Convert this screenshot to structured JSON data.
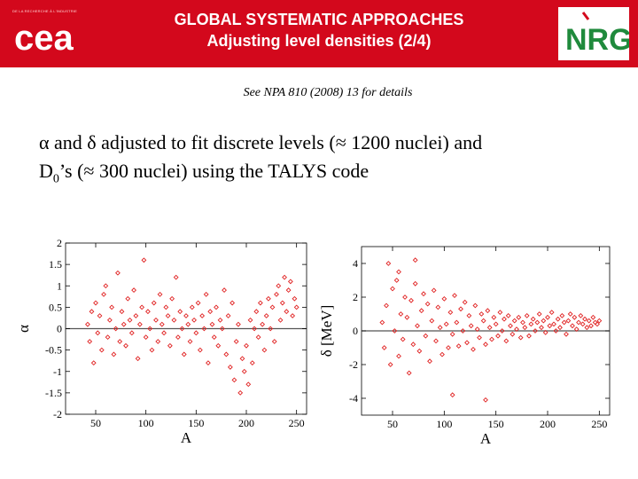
{
  "header": {
    "title_line1": "GLOBAL SYSTEMATIC APPROACHES",
    "title_line2": "Adjusting level densities (2/4)",
    "left_logo_tag": "DE LA RECHERCHE À L'INDUSTRIE",
    "left_logo_text": "cea",
    "right_logo_text": "NRG",
    "brand_color": "#d3081c",
    "nrg_color": "#1f8a3c"
  },
  "note": "See NPA 810 (2008) 13 for details",
  "body": {
    "line1_symbol_a": "α",
    "line1_and": " and ",
    "line1_symbol_b": "δ",
    "line1_rest": " adjusted to fit discrete levels (≈ 1200 nuclei) and",
    "line2_start": "D",
    "line2_sub": "0",
    "line2_rest": "’s (≈ 300 nuclei) using the TALYS code"
  },
  "chart_data": [
    {
      "type": "scatter",
      "xlabel": "A",
      "ylabel": "α",
      "xlim": [
        20,
        260
      ],
      "ylim": [
        -2,
        2
      ],
      "xticks": [
        50,
        100,
        150,
        200,
        250
      ],
      "yticks": [
        2,
        1.5,
        1,
        0.5,
        0,
        -0.5,
        -1,
        -1.5,
        -2
      ],
      "reference_line": 0,
      "marker_color": "#e02020",
      "points": [
        [
          42,
          0.1
        ],
        [
          44,
          -0.3
        ],
        [
          46,
          0.4
        ],
        [
          48,
          -0.8
        ],
        [
          50,
          0.6
        ],
        [
          52,
          -0.1
        ],
        [
          54,
          0.3
        ],
        [
          56,
          -0.5
        ],
        [
          58,
          0.8
        ],
        [
          60,
          1.0
        ],
        [
          62,
          -0.2
        ],
        [
          64,
          0.2
        ],
        [
          66,
          0.5
        ],
        [
          68,
          -0.6
        ],
        [
          70,
          0.0
        ],
        [
          72,
          1.3
        ],
        [
          74,
          -0.3
        ],
        [
          76,
          0.4
        ],
        [
          78,
          0.1
        ],
        [
          80,
          -0.4
        ],
        [
          82,
          0.7
        ],
        [
          84,
          0.2
        ],
        [
          86,
          -0.1
        ],
        [
          88,
          0.9
        ],
        [
          90,
          0.3
        ],
        [
          92,
          -0.7
        ],
        [
          94,
          0.1
        ],
        [
          96,
          0.5
        ],
        [
          98,
          1.6
        ],
        [
          100,
          -0.2
        ],
        [
          102,
          0.4
        ],
        [
          104,
          0.0
        ],
        [
          106,
          -0.5
        ],
        [
          108,
          0.6
        ],
        [
          110,
          0.2
        ],
        [
          112,
          -0.3
        ],
        [
          114,
          0.8
        ],
        [
          116,
          0.1
        ],
        [
          118,
          -0.1
        ],
        [
          120,
          0.5
        ],
        [
          122,
          0.3
        ],
        [
          124,
          -0.4
        ],
        [
          126,
          0.7
        ],
        [
          128,
          0.2
        ],
        [
          130,
          1.2
        ],
        [
          132,
          -0.2
        ],
        [
          134,
          0.4
        ],
        [
          136,
          0.0
        ],
        [
          138,
          -0.6
        ],
        [
          140,
          0.3
        ],
        [
          142,
          0.1
        ],
        [
          144,
          -0.3
        ],
        [
          146,
          0.5
        ],
        [
          148,
          0.2
        ],
        [
          150,
          -0.1
        ],
        [
          152,
          0.6
        ],
        [
          154,
          -0.5
        ],
        [
          156,
          0.3
        ],
        [
          158,
          0.0
        ],
        [
          160,
          0.8
        ],
        [
          162,
          -0.8
        ],
        [
          164,
          0.4
        ],
        [
          166,
          0.1
        ],
        [
          168,
          -0.2
        ],
        [
          170,
          0.5
        ],
        [
          172,
          -0.4
        ],
        [
          174,
          0.2
        ],
        [
          176,
          0.0
        ],
        [
          178,
          0.9
        ],
        [
          180,
          -0.6
        ],
        [
          182,
          0.3
        ],
        [
          184,
          -0.9
        ],
        [
          186,
          0.6
        ],
        [
          188,
          -1.2
        ],
        [
          190,
          -0.3
        ],
        [
          192,
          0.1
        ],
        [
          194,
          -1.5
        ],
        [
          196,
          -0.7
        ],
        [
          198,
          -1.0
        ],
        [
          200,
          -0.4
        ],
        [
          202,
          -1.3
        ],
        [
          204,
          0.2
        ],
        [
          206,
          -0.8
        ],
        [
          208,
          0.0
        ],
        [
          210,
          0.4
        ],
        [
          212,
          -0.2
        ],
        [
          214,
          0.6
        ],
        [
          216,
          0.1
        ],
        [
          218,
          -0.5
        ],
        [
          220,
          0.3
        ],
        [
          222,
          0.7
        ],
        [
          224,
          0.0
        ],
        [
          226,
          0.5
        ],
        [
          228,
          -0.3
        ],
        [
          230,
          0.8
        ],
        [
          232,
          1.0
        ],
        [
          234,
          0.2
        ],
        [
          236,
          0.6
        ],
        [
          238,
          1.2
        ],
        [
          240,
          0.4
        ],
        [
          242,
          0.9
        ],
        [
          244,
          1.1
        ],
        [
          246,
          0.3
        ],
        [
          248,
          0.7
        ],
        [
          250,
          0.5
        ]
      ]
    },
    {
      "type": "scatter",
      "xlabel": "A",
      "ylabel": "δ [MeV]",
      "xlim": [
        20,
        260
      ],
      "ylim": [
        -5,
        5
      ],
      "xticks": [
        50,
        100,
        150,
        200,
        250
      ],
      "yticks": [
        4,
        2,
        0,
        -2,
        -4
      ],
      "reference_line": 0,
      "marker_color": "#e02020",
      "points": [
        [
          40,
          0.5
        ],
        [
          42,
          -1.0
        ],
        [
          44,
          1.5
        ],
        [
          46,
          4.0
        ],
        [
          48,
          -2.0
        ],
        [
          50,
          2.5
        ],
        [
          52,
          0.0
        ],
        [
          54,
          3.0
        ],
        [
          56,
          -1.5
        ],
        [
          58,
          1.0
        ],
        [
          60,
          -0.5
        ],
        [
          62,
          2.0
        ],
        [
          64,
          0.8
        ],
        [
          66,
          -2.5
        ],
        [
          68,
          1.8
        ],
        [
          70,
          -0.8
        ],
        [
          72,
          2.8
        ],
        [
          74,
          0.3
        ],
        [
          76,
          -1.2
        ],
        [
          78,
          1.2
        ],
        [
          80,
          2.2
        ],
        [
          82,
          -0.3
        ],
        [
          84,
          1.6
        ],
        [
          86,
          -1.8
        ],
        [
          88,
          0.6
        ],
        [
          90,
          2.4
        ],
        [
          92,
          -0.6
        ],
        [
          94,
          1.4
        ],
        [
          96,
          0.2
        ],
        [
          98,
          -1.4
        ],
        [
          100,
          1.9
        ],
        [
          102,
          0.4
        ],
        [
          104,
          -1.0
        ],
        [
          106,
          1.1
        ],
        [
          108,
          -0.2
        ],
        [
          110,
          2.1
        ],
        [
          112,
          0.5
        ],
        [
          114,
          -0.9
        ],
        [
          116,
          1.3
        ],
        [
          118,
          0.0
        ],
        [
          120,
          1.7
        ],
        [
          122,
          -0.7
        ],
        [
          124,
          0.9
        ],
        [
          126,
          0.3
        ],
        [
          128,
          -1.1
        ],
        [
          130,
          1.5
        ],
        [
          132,
          0.1
        ],
        [
          134,
          -0.4
        ],
        [
          136,
          1.0
        ],
        [
          138,
          0.6
        ],
        [
          140,
          -0.8
        ],
        [
          142,
          1.2
        ],
        [
          144,
          0.2
        ],
        [
          146,
          -0.5
        ],
        [
          148,
          0.8
        ],
        [
          150,
          0.4
        ],
        [
          152,
          -0.3
        ],
        [
          154,
          1.1
        ],
        [
          156,
          0.0
        ],
        [
          158,
          0.7
        ],
        [
          160,
          -0.6
        ],
        [
          162,
          0.9
        ],
        [
          164,
          0.3
        ],
        [
          166,
          -0.2
        ],
        [
          168,
          0.6
        ],
        [
          170,
          0.1
        ],
        [
          172,
          0.8
        ],
        [
          174,
          -0.4
        ],
        [
          176,
          0.5
        ],
        [
          178,
          0.2
        ],
        [
          180,
          0.9
        ],
        [
          182,
          -0.3
        ],
        [
          184,
          0.4
        ],
        [
          186,
          0.7
        ],
        [
          188,
          0.0
        ],
        [
          190,
          0.5
        ],
        [
          192,
          1.0
        ],
        [
          194,
          0.2
        ],
        [
          196,
          0.6
        ],
        [
          198,
          -0.1
        ],
        [
          200,
          0.8
        ],
        [
          202,
          0.3
        ],
        [
          204,
          1.1
        ],
        [
          206,
          0.4
        ],
        [
          208,
          0.0
        ],
        [
          210,
          0.7
        ],
        [
          212,
          0.2
        ],
        [
          214,
          0.9
        ],
        [
          216,
          0.5
        ],
        [
          218,
          -0.2
        ],
        [
          220,
          0.6
        ],
        [
          222,
          1.0
        ],
        [
          224,
          0.3
        ],
        [
          226,
          0.8
        ],
        [
          228,
          0.1
        ],
        [
          230,
          0.5
        ],
        [
          232,
          0.9
        ],
        [
          234,
          0.4
        ],
        [
          236,
          0.7
        ],
        [
          238,
          0.2
        ],
        [
          240,
          0.6
        ],
        [
          242,
          0.3
        ],
        [
          244,
          0.8
        ],
        [
          246,
          0.5
        ],
        [
          248,
          0.4
        ],
        [
          250,
          0.6
        ],
        [
          108,
          -3.8
        ],
        [
          140,
          -4.1
        ],
        [
          72,
          4.2
        ],
        [
          56,
          3.5
        ]
      ]
    }
  ]
}
